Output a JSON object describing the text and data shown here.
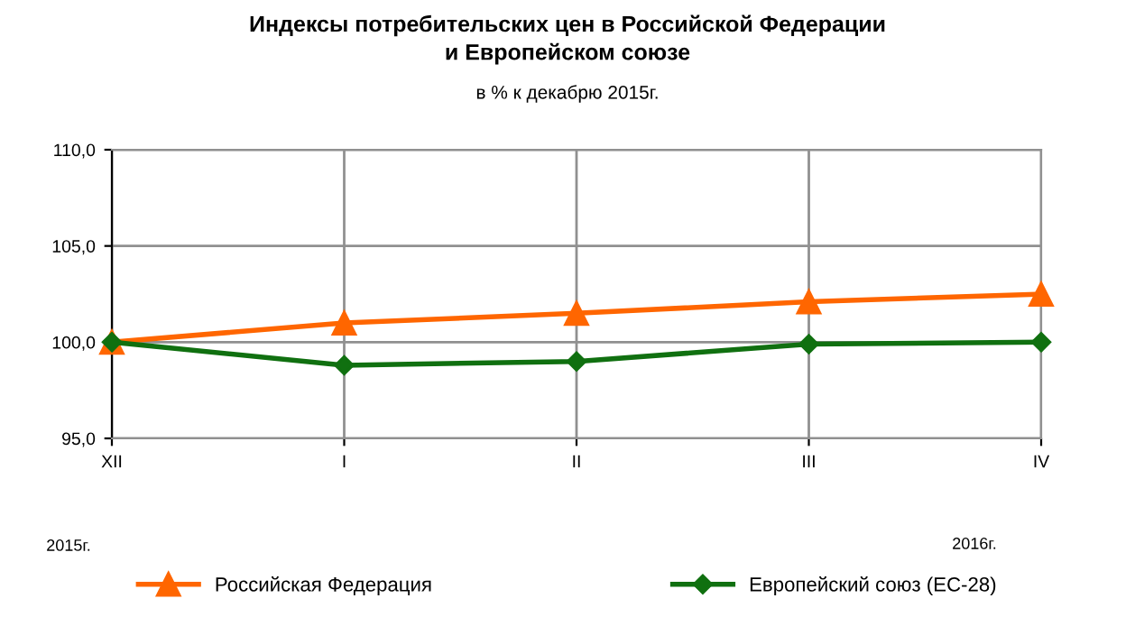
{
  "chart_data": {
    "type": "line",
    "title": "Индексы потребительских цен в Российской Федерации\nи Европейском союзе",
    "subtitle": "в % к декабрю 2015г.",
    "categories": [
      "XII",
      "I",
      "II",
      "III",
      "IV"
    ],
    "series": [
      {
        "name": "Российская Федерация",
        "color": "#ff6600",
        "marker": "triangle",
        "values": [
          100.0,
          101.0,
          101.5,
          102.1,
          102.5
        ]
      },
      {
        "name": "Европейский союз (ЕС-28)",
        "color": "#107010",
        "marker": "diamond",
        "values": [
          100.0,
          98.8,
          99.0,
          99.9,
          100.0
        ]
      }
    ],
    "ylim": [
      95,
      110
    ],
    "yticks": [
      {
        "value": 95,
        "label": "95,0"
      },
      {
        "value": 100,
        "label": "100,0"
      },
      {
        "value": 105,
        "label": "105,0"
      },
      {
        "value": 110,
        "label": "110,0"
      }
    ],
    "grid": true,
    "legend": "bottom",
    "line_style": "solid",
    "annotations": [
      "2015г.",
      "2016г."
    ]
  }
}
